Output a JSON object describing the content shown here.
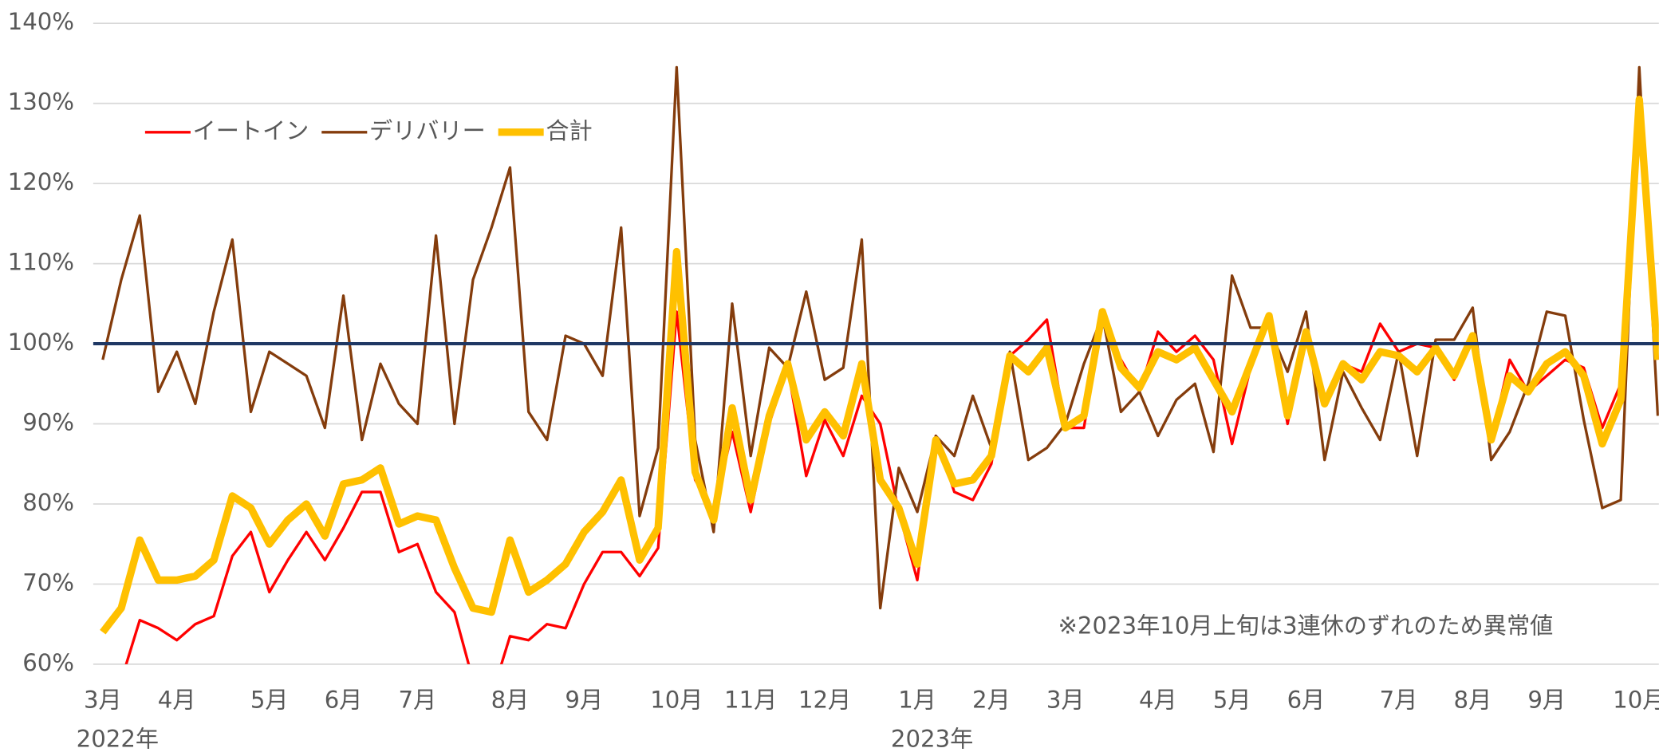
{
  "chart_data": {
    "type": "line",
    "categories": [
      "3月",
      null,
      null,
      null,
      "4月",
      null,
      null,
      null,
      null,
      "5月",
      null,
      null,
      null,
      "6月",
      null,
      null,
      null,
      "7月",
      null,
      null,
      null,
      null,
      "8月",
      null,
      null,
      null,
      "9月",
      null,
      null,
      null,
      null,
      "10月",
      null,
      null,
      null,
      "11月",
      null,
      null,
      null,
      "12月",
      null,
      null,
      null,
      null,
      "1月",
      null,
      null,
      null,
      "2月",
      null,
      null,
      null,
      "3月",
      null,
      null,
      null,
      null,
      "4月",
      null,
      null,
      null,
      "5月",
      null,
      null,
      null,
      "6月",
      null,
      null,
      null,
      null,
      "7月",
      null,
      null,
      null,
      "8月",
      null,
      null,
      null,
      "9月",
      null,
      null,
      null,
      null,
      "10月",
      null
    ],
    "x_groups": [
      "2022年",
      null,
      null,
      null,
      null,
      null,
      null,
      null,
      null,
      null,
      null,
      null,
      null,
      null,
      null,
      null,
      null,
      null,
      null,
      null,
      null,
      null,
      null,
      null,
      null,
      null,
      null,
      null,
      null,
      null,
      null,
      null,
      null,
      null,
      null,
      null,
      null,
      null,
      null,
      null,
      null,
      null,
      null,
      null,
      "2023年",
      null,
      null,
      null,
      null,
      null,
      null,
      null,
      null,
      null,
      null,
      null,
      null,
      null,
      null,
      null,
      null,
      null,
      null,
      null,
      null,
      null,
      null,
      null,
      null,
      null,
      null,
      null,
      null,
      null,
      null,
      null,
      null,
      null,
      null,
      null,
      null,
      null,
      null,
      null,
      null
    ],
    "series": [
      {
        "name": "イートイン",
        "color": "#ff0000",
        "values": [
          55,
          58,
          65.5,
          64.5,
          63,
          65,
          66,
          73.5,
          76.5,
          69,
          73,
          76.5,
          73,
          77,
          81.5,
          81.5,
          74,
          75,
          69,
          66.5,
          58,
          56,
          63.5,
          63,
          65,
          64.5,
          70,
          74,
          74,
          71,
          74.5,
          104,
          83,
          79,
          89,
          79,
          90,
          97,
          83.5,
          90.5,
          86,
          93.5,
          90,
          79,
          70.5,
          88.5,
          81.5,
          80.5,
          85,
          98.5,
          100.5,
          103,
          89.5,
          89.5,
          103.5,
          98,
          94,
          101.5,
          99,
          101,
          98,
          87.5,
          97,
          103,
          90,
          101.5,
          93,
          97.5,
          96.5,
          102.5,
          99,
          100,
          99.5,
          95.5,
          100.5,
          88,
          98,
          94,
          96,
          98,
          97,
          89.5,
          95,
          130,
          98
        ]
      },
      {
        "name": "デリバリー",
        "color": "#843c0c",
        "values": [
          98,
          108,
          116,
          94,
          99,
          92.5,
          104,
          113,
          91.5,
          99,
          97.5,
          96,
          89.5,
          106,
          88,
          97.5,
          92.5,
          90,
          113.5,
          90,
          108,
          114.5,
          122,
          91.5,
          88,
          101,
          100,
          96,
          114.5,
          78.5,
          87,
          134.5,
          88,
          76.5,
          105,
          86,
          99.5,
          97,
          106.5,
          95.5,
          97,
          113,
          67,
          84.5,
          79,
          88.5,
          86,
          93.5,
          87,
          99,
          85.5,
          87,
          90,
          97.5,
          103.5,
          91.5,
          94,
          88.5,
          93,
          95,
          86.5,
          108.5,
          102,
          102,
          96.5,
          104,
          85.5,
          96.5,
          92,
          88,
          99,
          86,
          100.5,
          100.5,
          104.5,
          85.5,
          89,
          95,
          104,
          103.5,
          90.5,
          79.5,
          80.5,
          134.5,
          91
        ]
      },
      {
        "name": "合計",
        "color": "#ffc000",
        "values": [
          64,
          67,
          75.5,
          70.5,
          70.5,
          71,
          73,
          81,
          79.5,
          75,
          78,
          80,
          76,
          82.5,
          83,
          84.5,
          77.5,
          78.5,
          78,
          72,
          67,
          66.5,
          75.5,
          69,
          70.5,
          72.5,
          76.5,
          79,
          83,
          73,
          77,
          111.5,
          84,
          78,
          92,
          80.5,
          91,
          97.5,
          88,
          91.5,
          88.5,
          97.5,
          83,
          79.5,
          72.5,
          88,
          82.5,
          83,
          86,
          98.5,
          96.5,
          99.5,
          89.5,
          91,
          104,
          97,
          94.5,
          99,
          98,
          99.5,
          95.5,
          91.5,
          97.5,
          103.5,
          91,
          101.5,
          92.5,
          97.5,
          95.5,
          99,
          98.5,
          96.5,
          99.5,
          96,
          101,
          88,
          96,
          94,
          97.5,
          99,
          96,
          87.5,
          93,
          130.5,
          98
        ]
      }
    ],
    "ylim": [
      60,
      140
    ],
    "yticks": [
      {
        "value": 60,
        "label": "60%"
      },
      {
        "value": 70,
        "label": "70%"
      },
      {
        "value": 80,
        "label": "80%"
      },
      {
        "value": 90,
        "label": "90%"
      },
      {
        "value": 100,
        "label": "100%"
      },
      {
        "value": 110,
        "label": "110%"
      },
      {
        "value": 120,
        "label": "120%"
      },
      {
        "value": 130,
        "label": "130%"
      },
      {
        "value": 140,
        "label": "140%"
      }
    ],
    "reference_line": 100,
    "grid": true,
    "legend": "upper left",
    "annotation": "※2023年10月上旬は3連休のずれのため異常値"
  }
}
